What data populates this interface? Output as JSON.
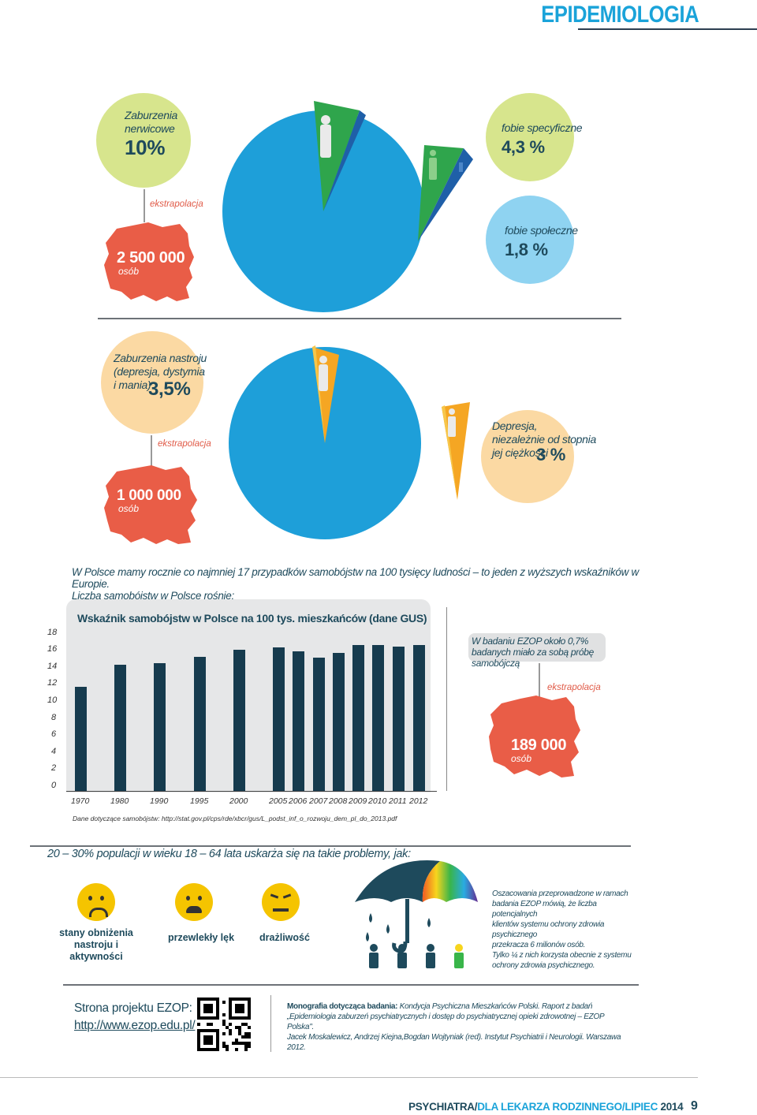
{
  "header": {
    "title": "EPIDEMIOLOGIA"
  },
  "section1": {
    "left_circle": {
      "line1": "Zaburzenia",
      "line2": "nerwicowe",
      "value": "10%"
    },
    "extrapolation": "ekstrapolacja",
    "map_value": "2 500 000",
    "map_unit": "osób",
    "right_top": {
      "label": "fobie specyficzne",
      "value": "4,3 %"
    },
    "right_bottom": {
      "label": "fobie społeczne",
      "value": "1,8 %"
    }
  },
  "section2": {
    "left_circle": {
      "line1": "Zaburzenia nastroju",
      "line2": "(depresja, dystymia",
      "line3": "i mania)",
      "value": "3,5%"
    },
    "extrapolation": "ekstrapolacja",
    "map_value": "1 000 000",
    "map_unit": "osób",
    "right": {
      "line1": "Depresja,",
      "line2": "niezależnie od stopnia",
      "line3": "jej ciężkości",
      "value": "3 %"
    }
  },
  "section3": {
    "intro_line1": "W Polsce mamy rocznie co najmniej 17 przypadków samobójstw na 100 tysięcy ludności – to jeden z wyższych wskaźników w Europie.",
    "intro_line2": "Liczba samobójstw w Polsce rośnie:",
    "note": "W badaniu EZOP około 0,7% badanych miało za sobą próbę samobójczą",
    "extrapolation": "ekstrapolacja",
    "map_value": "189 000",
    "map_unit": "osób",
    "source": "Dane dotyczące samobójstw: http://stat.gov.pl/cps/rde/xbcr/gus/L_podst_inf_o_rozwoju_dem_pl_do_2013.pdf"
  },
  "chart_data": {
    "type": "bar",
    "title": "Wskaźnik samobójstw w Polsce na 100 tys. mieszkańców (dane GUS)",
    "categories": [
      "1970",
      "1980",
      "1990",
      "1995",
      "2000",
      "2005",
      "2006",
      "2007",
      "2008",
      "2009",
      "2010",
      "2011",
      "2012"
    ],
    "values": [
      12.9,
      15.6,
      15.8,
      16.6,
      17.4,
      17.7,
      17.3,
      16.5,
      17.1,
      18.0,
      18.0,
      17.8,
      18.0
    ],
    "yticks": [
      "0",
      "2",
      "4",
      "6",
      "8",
      "10",
      "12",
      "14",
      "16",
      "18"
    ],
    "ylim": [
      0,
      20
    ],
    "grid": false
  },
  "section4": {
    "heading": "20 – 30% populacji w wieku 18 – 64 lata uskarża się na takie problemy, jak:",
    "faces": [
      {
        "label_line1": "stany obniżenia",
        "label_line2": "nastroju i aktywności"
      },
      {
        "label_line1": "przewlekły lęk",
        "label_line2": ""
      },
      {
        "label_line1": "drażliwość",
        "label_line2": ""
      }
    ],
    "side_text": [
      "Oszacowania przeprowadzone w ramach",
      "badania EZOP mówią, że liczba potencjalnych",
      "klientów systemu ochrony zdrowia psychicznego",
      "przekracza 6 milionów osób.",
      "Tylko ¼ z nich korzysta obecnie z systemu",
      "ochrony zdrowia psychicznego."
    ]
  },
  "footer": {
    "project_label": "Strona projektu EZOP:",
    "project_url": "http://www.ezop.edu.pl/",
    "mono_bold": "Monografia dotycząca badania:",
    "mono_line1": " Kondycja Psychiczna Mieszkańców Polski. Raport z badań",
    "mono_line2": "„Epidemiologia zaburzeń psychiatrycznych i dostęp do psychiatrycznej opieki zdrowotnej – EZOP Polska\".",
    "mono_line3": "Jacek Moskalewicz, Andrzej Kiejna,Bogdan Wojtyniak (red). Instytut Psychiatrii i Neurologii. Warszawa 2012.",
    "journal_part1": "PSYCHIATRA/",
    "journal_part2": "DLA LEKARZA RODZINNEGO/",
    "journal_part3": "LIPIEC",
    "journal_part4": " 2014",
    "page_number": "9"
  }
}
